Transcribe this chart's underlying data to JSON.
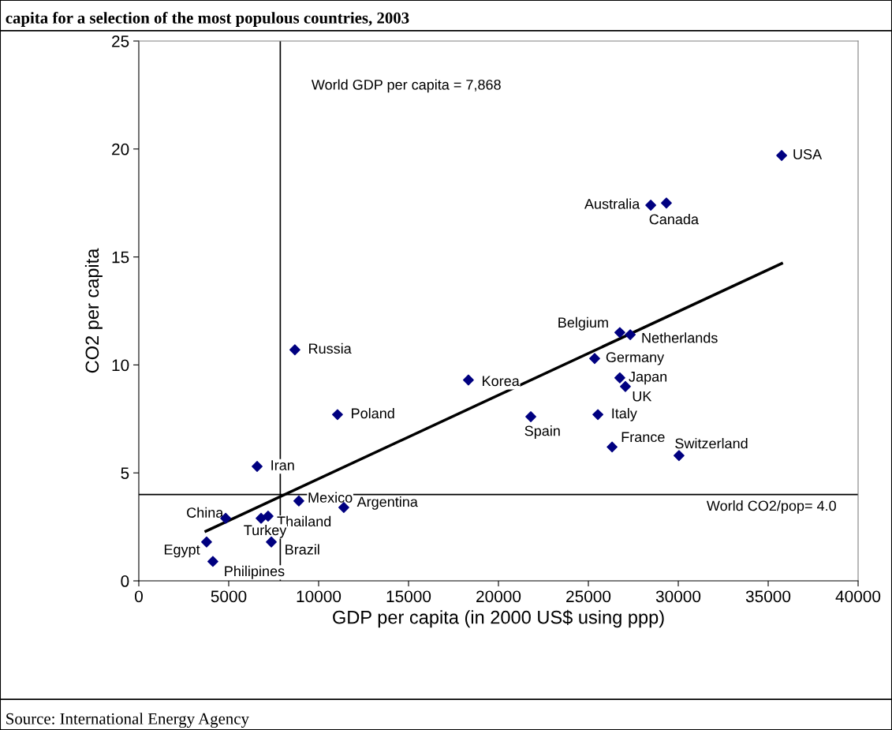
{
  "chart_data": {
    "type": "scatter",
    "title": "capita for a selection of the most populous countries, 2003",
    "xlabel": "GDP per capita (in 2000 US$ using ppp)",
    "ylabel": "CO2 per capita",
    "xlim": [
      0,
      40000
    ],
    "ylim": [
      0,
      25
    ],
    "xticks": [
      0,
      5000,
      10000,
      15000,
      20000,
      25000,
      30000,
      35000,
      40000
    ],
    "yticks": [
      0,
      5,
      10,
      15,
      20,
      25
    ],
    "grid": false,
    "legend": false,
    "series": [
      {
        "marker": "diamond",
        "color": "#000080",
        "x": [
          35750,
          28470,
          29340,
          26750,
          27330,
          25350,
          26750,
          27060,
          25530,
          26320,
          30040,
          21800,
          18330,
          8680,
          11050,
          6580,
          8900,
          11400,
          7190,
          6800,
          4830,
          3770,
          4120,
          7370
        ],
        "values": [
          19.7,
          17.4,
          17.5,
          11.5,
          11.4,
          10.3,
          9.4,
          9.0,
          7.7,
          6.2,
          5.8,
          7.6,
          9.3,
          10.7,
          7.7,
          5.3,
          3.7,
          3.4,
          3.0,
          2.9,
          2.9,
          1.8,
          0.9,
          1.8
        ]
      },
      {
        "type": "line",
        "color": "#000000",
        "line_style": "solid",
        "x": [
          3730,
          35750
        ],
        "values": [
          2.3,
          14.7
        ]
      }
    ],
    "ref_lines": [
      {
        "axis": "x",
        "value": 7868,
        "label": "World GDP per capita = 7,868",
        "color": "#000000"
      },
      {
        "axis": "y",
        "value": 4.0,
        "label": "World CO2/pop= 4.0",
        "color": "#000000"
      }
    ],
    "annotations": [
      {
        "text": "USA",
        "x": 35750,
        "y": 19.7
      },
      {
        "text": "Australia",
        "x": 28470,
        "y": 17.4
      },
      {
        "text": "Canada",
        "x": 29340,
        "y": 17.5
      },
      {
        "text": "Belgium",
        "x": 26750,
        "y": 11.5
      },
      {
        "text": "Netherlands",
        "x": 27330,
        "y": 11.4
      },
      {
        "text": "Germany",
        "x": 25350,
        "y": 10.3
      },
      {
        "text": "Japan",
        "x": 26750,
        "y": 9.4
      },
      {
        "text": "UK",
        "x": 27060,
        "y": 9.0
      },
      {
        "text": "Italy",
        "x": 25530,
        "y": 7.7
      },
      {
        "text": "France",
        "x": 26320,
        "y": 6.2
      },
      {
        "text": "Switzerland",
        "x": 30040,
        "y": 5.8
      },
      {
        "text": "Spain",
        "x": 21800,
        "y": 7.6
      },
      {
        "text": "Korea",
        "x": 18330,
        "y": 9.3
      },
      {
        "text": "Russia",
        "x": 8680,
        "y": 10.7
      },
      {
        "text": "Poland",
        "x": 11050,
        "y": 7.7
      },
      {
        "text": "Iran",
        "x": 6580,
        "y": 5.3
      },
      {
        "text": "Mexico",
        "x": 8900,
        "y": 3.7
      },
      {
        "text": "Argentina",
        "x": 11400,
        "y": 3.4
      },
      {
        "text": "Thailand",
        "x": 7190,
        "y": 3.0
      },
      {
        "text": "Turkey",
        "x": 6800,
        "y": 2.9
      },
      {
        "text": "China",
        "x": 4830,
        "y": 2.9
      },
      {
        "text": "Egypt",
        "x": 3770,
        "y": 1.8
      },
      {
        "text": "Philipines",
        "x": 4120,
        "y": 0.9
      },
      {
        "text": "Brazil",
        "x": 7370,
        "y": 1.8
      },
      "Source: International Energy Agency"
    ]
  }
}
